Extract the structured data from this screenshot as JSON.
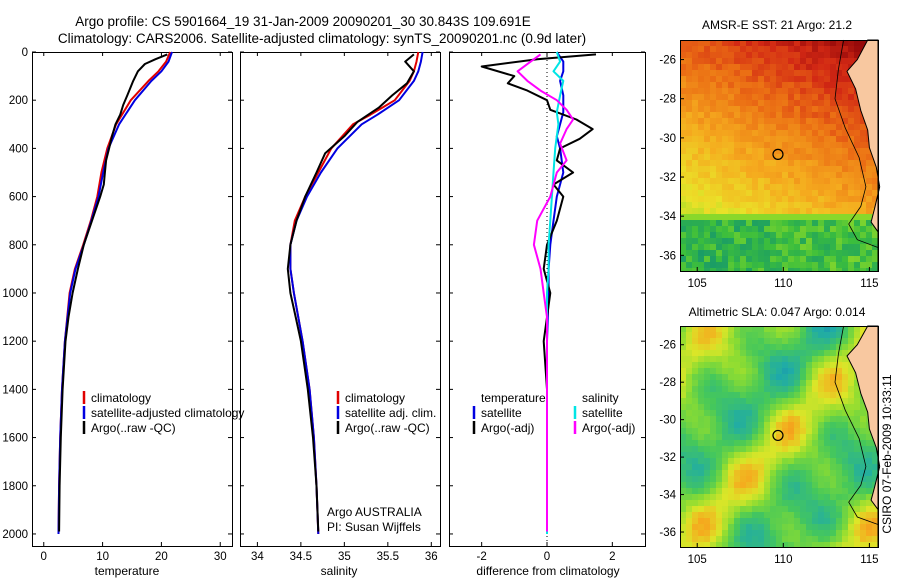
{
  "figure": {
    "title_line1": "Argo profile: CS 5901664_19 31-Jan-2009 20090201_30 30.843S 109.691E",
    "title_line2": "Climatology: CARS2006. Satellite-adjusted climatology: synTS_20090201.nc (0.9d later)",
    "side_note": "CSIRO 07-Feb-2009 10:33:11"
  },
  "colors": {
    "climatology": "#e00000",
    "satellite": "#0000e0",
    "argo": "#000000",
    "sal_satellite": "#00e5e5",
    "sal_argo": "#ff00ff",
    "land": "#f8c8a0"
  },
  "chart_data": [
    {
      "type": "line",
      "id": "temperature",
      "xlabel": "temperature",
      "ylabel": "",
      "xlim": [
        -2,
        32
      ],
      "ylim": [
        2050,
        0
      ],
      "xticks": [
        0,
        10,
        20,
        30
      ],
      "yticks": [
        0,
        200,
        400,
        600,
        800,
        1000,
        1200,
        1400,
        1600,
        1800,
        2000
      ],
      "legend": {
        "placement": "lower-right",
        "entries": [
          "climatology",
          "satellite-adjusted climatology",
          "Argo(..raw -QC)"
        ]
      },
      "series": [
        {
          "name": "climatology",
          "color": "climatology",
          "depth": [
            0,
            40,
            80,
            120,
            200,
            300,
            400,
            500,
            600,
            700,
            800,
            900,
            1000,
            1200,
            1400,
            1600,
            1800,
            2000
          ],
          "values": [
            21.5,
            20.8,
            19.5,
            17.8,
            14.8,
            12.3,
            10.8,
            9.8,
            9.1,
            8.0,
            6.7,
            5.3,
            4.4,
            3.6,
            3.1,
            2.8,
            2.6,
            2.5
          ]
        },
        {
          "name": "satellite-adjusted climatology",
          "color": "satellite",
          "depth": [
            0,
            40,
            80,
            120,
            200,
            300,
            400,
            500,
            600,
            700,
            800,
            900,
            1000,
            1200,
            1400,
            1600,
            1800,
            2000
          ],
          "values": [
            21.8,
            21.2,
            20.0,
            18.3,
            15.5,
            12.8,
            11.0,
            10.1,
            9.3,
            8.1,
            6.8,
            5.4,
            4.5,
            3.6,
            3.1,
            2.8,
            2.6,
            2.5
          ]
        },
        {
          "name": "Argo(..raw -QC)",
          "color": "argo",
          "depth": [
            10,
            30,
            50,
            80,
            120,
            180,
            220,
            260,
            300,
            350,
            400,
            450,
            500,
            550,
            600,
            700,
            800,
            900,
            1000,
            1100,
            1200,
            1400,
            1600,
            1800,
            1990
          ],
          "values": [
            21.0,
            19.0,
            17.2,
            16.0,
            15.2,
            14.2,
            13.5,
            13.0,
            12.2,
            11.6,
            11.1,
            10.6,
            10.4,
            10.2,
            9.6,
            8.2,
            6.8,
            5.8,
            4.9,
            4.2,
            3.7,
            3.2,
            2.9,
            2.7,
            2.6
          ]
        }
      ]
    },
    {
      "type": "line",
      "id": "salinity",
      "xlabel": "salinity",
      "ylabel": "",
      "xlim": [
        33.8,
        36.1
      ],
      "ylim": [
        2050,
        0
      ],
      "xticks": [
        34,
        34.5,
        35,
        35.5,
        36
      ],
      "yticks": [],
      "legend": {
        "placement": "lower-right",
        "entries": [
          "climatology",
          "satellite adj. clim.",
          "Argo(..raw -QC)"
        ]
      },
      "annotation": {
        "line1": "Argo AUSTRALIA",
        "line2": "PI: Susan Wijffels"
      },
      "series": [
        {
          "name": "climatology",
          "color": "climatology",
          "depth": [
            0,
            40,
            80,
            120,
            200,
            260,
            300,
            400,
            500,
            600,
            700,
            800,
            900,
            1000,
            1200,
            1400,
            1600,
            1800,
            2000
          ],
          "values": [
            35.85,
            35.83,
            35.8,
            35.75,
            35.58,
            35.3,
            35.1,
            34.85,
            34.7,
            34.55,
            34.43,
            34.38,
            34.38,
            34.42,
            34.52,
            34.6,
            34.65,
            34.68,
            34.7
          ]
        },
        {
          "name": "satellite adj. clim.",
          "color": "satellite",
          "depth": [
            0,
            40,
            80,
            120,
            200,
            260,
            300,
            400,
            500,
            600,
            700,
            800,
            900,
            1000,
            1200,
            1400,
            1600,
            1800,
            2000
          ],
          "values": [
            35.9,
            35.88,
            35.85,
            35.8,
            35.63,
            35.38,
            35.2,
            34.92,
            34.73,
            34.57,
            34.45,
            34.38,
            34.38,
            34.42,
            34.52,
            34.6,
            34.65,
            34.68,
            34.7
          ]
        },
        {
          "name": "Argo(..raw -QC)",
          "color": "argo",
          "depth": [
            10,
            40,
            80,
            130,
            180,
            230,
            290,
            350,
            420,
            500,
            600,
            700,
            800,
            900,
            1000,
            1100,
            1200,
            1400,
            1600,
            1800,
            1990
          ],
          "values": [
            35.8,
            35.7,
            35.8,
            35.72,
            35.55,
            35.4,
            35.15,
            35.0,
            34.78,
            34.68,
            34.55,
            34.45,
            34.38,
            34.35,
            34.38,
            34.44,
            34.5,
            34.58,
            34.64,
            34.68,
            34.7
          ]
        }
      ]
    },
    {
      "type": "line",
      "id": "difference",
      "xlabel": "difference from climatology",
      "ylabel": "",
      "xlim": [
        -3,
        3
      ],
      "ylim": [
        2050,
        0
      ],
      "xticks": [
        -2,
        0,
        2
      ],
      "yticks": [],
      "legend_left": {
        "placement": "lower-left",
        "heading": "temperature",
        "entries": [
          "satellite",
          "Argo(-adj)"
        ]
      },
      "legend_right": {
        "placement": "lower-right",
        "heading": "salinity",
        "entries": [
          "satellite",
          "Argo(-adj)"
        ]
      },
      "series": [
        {
          "name": "temperature satellite",
          "color": "satellite",
          "depth": [
            0,
            40,
            80,
            120,
            180,
            250,
            300,
            350,
            400,
            500,
            600,
            700,
            800,
            900,
            1000,
            1200,
            1400,
            1600,
            1800,
            2000
          ],
          "values": [
            0.3,
            0.5,
            0.5,
            0.4,
            0.5,
            0.5,
            0.4,
            0.3,
            0.4,
            0.5,
            0.3,
            0.2,
            0.1,
            0.05,
            0.05,
            0.0,
            0.0,
            0.0,
            0.0,
            0.0
          ]
        },
        {
          "name": "temperature Argo(-adj)",
          "color": "argo",
          "depth": [
            10,
            30,
            60,
            100,
            130,
            160,
            200,
            240,
            280,
            320,
            360,
            400,
            450,
            500,
            550,
            600,
            700,
            800,
            900,
            1000,
            1100,
            1200,
            1400,
            1600,
            1800,
            1990
          ],
          "values": [
            1.5,
            -0.3,
            -2.0,
            -1.0,
            -1.2,
            -0.6,
            0.0,
            0.1,
            0.9,
            1.4,
            1.0,
            0.4,
            0.3,
            0.8,
            0.2,
            0.5,
            0.3,
            0.0,
            -0.1,
            0.1,
            0.0,
            -0.1,
            0.0,
            0.0,
            0.0,
            0.0
          ]
        },
        {
          "name": "salinity satellite",
          "color": "sal_satellite",
          "depth": [
            0,
            40,
            80,
            120,
            180,
            250,
            300,
            400,
            500,
            600,
            700,
            800,
            900,
            1000,
            1200,
            1400,
            1600,
            1800,
            2000
          ],
          "values": [
            0.3,
            0.4,
            0.2,
            0.5,
            0.4,
            0.3,
            0.35,
            0.25,
            0.2,
            0.15,
            0.1,
            0.05,
            0.05,
            0.0,
            0.0,
            0.0,
            0.0,
            0.0,
            0.0
          ]
        },
        {
          "name": "salinity Argo(-adj)",
          "color": "sal_argo",
          "depth": [
            10,
            40,
            80,
            120,
            160,
            200,
            240,
            280,
            320,
            380,
            450,
            500,
            600,
            700,
            800,
            900,
            1000,
            1100,
            1200,
            1400,
            1600,
            1800,
            1990
          ],
          "values": [
            -0.2,
            -0.5,
            -0.9,
            -0.6,
            -0.2,
            0.3,
            0.6,
            0.8,
            0.6,
            0.4,
            0.6,
            0.3,
            0.1,
            -0.3,
            -0.4,
            -0.2,
            -0.1,
            0.0,
            0.0,
            0.0,
            0.0,
            0.0,
            0.0
          ]
        }
      ]
    },
    {
      "type": "heatmap",
      "id": "sst_map",
      "title": "AMSR-E SST: 21 Argo: 21.2",
      "xlim": [
        104,
        115.5
      ],
      "ylim": [
        -36.8,
        -25
      ],
      "xticks": [
        105,
        110,
        115
      ],
      "yticks": [
        -26,
        -28,
        -30,
        -32,
        -34,
        -36
      ],
      "colormap": "jet-like (green to red)",
      "marker": {
        "lon": 109.691,
        "lat": -30.843
      }
    },
    {
      "type": "heatmap",
      "id": "sla_map",
      "title": "Altimetric SLA: 0.047 Argo: 0.014",
      "xlim": [
        104,
        115.5
      ],
      "ylim": [
        -36.8,
        -25
      ],
      "xticks": [
        105,
        110,
        115
      ],
      "yticks": [
        -26,
        -28,
        -30,
        -32,
        -34,
        -36
      ],
      "colormap": "jet-like (blue to orange)",
      "marker": {
        "lon": 109.691,
        "lat": -30.843
      }
    }
  ]
}
